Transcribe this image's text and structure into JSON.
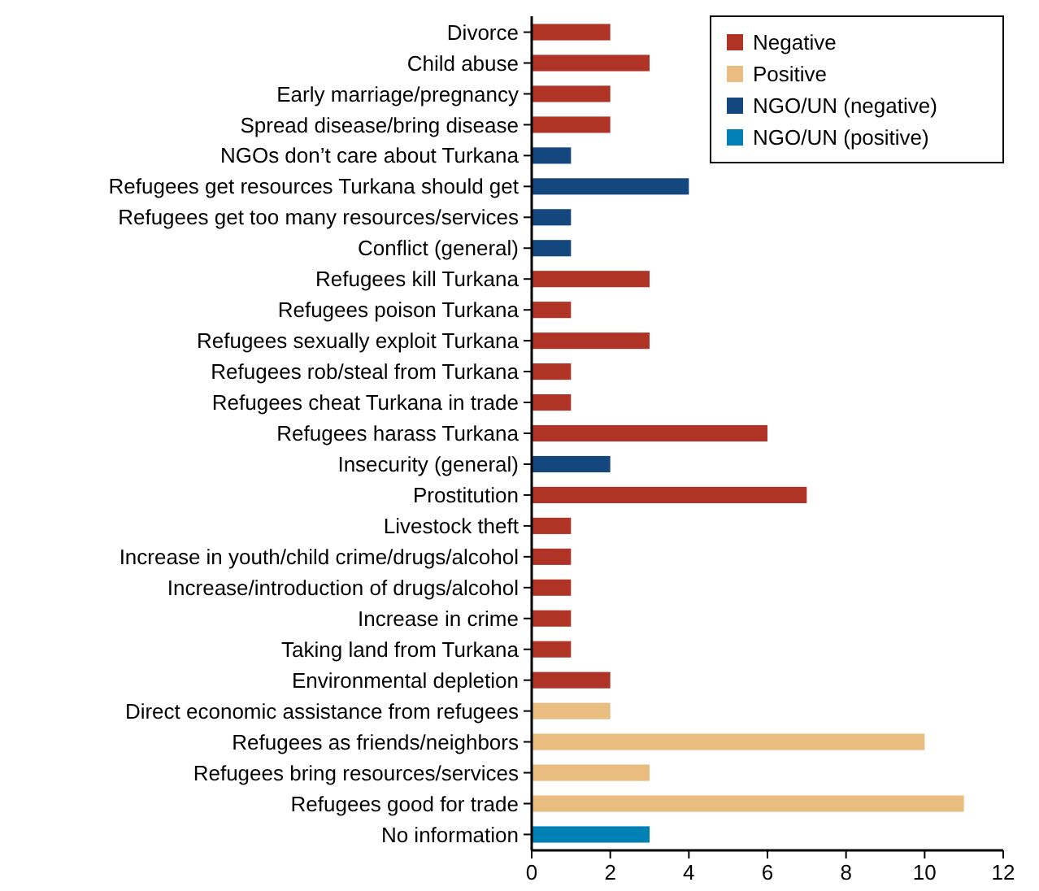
{
  "chart_data": {
    "type": "bar",
    "orientation": "horizontal",
    "categories": [
      "Divorce",
      "Child abuse",
      "Early marriage/pregnancy",
      "Spread disease/bring disease",
      "NGOs don’t care about Turkana",
      "Refugees get resources Turkana should get",
      "Refugees get too many resources/services",
      "Conflict (general)",
      "Refugees kill Turkana",
      "Refugees poison Turkana",
      "Refugees sexually exploit Turkana",
      "Refugees rob/steal from Turkana",
      "Refugees cheat Turkana in trade",
      "Refugees harass Turkana",
      "Insecurity (general)",
      "Prostitution",
      "Livestock theft",
      "Increase in youth/child crime/drugs/alcohol",
      "Increase/introduction of drugs/alcohol",
      "Increase in crime",
      "Taking land from Turkana",
      "Environmental depletion",
      "Direct economic assistance from refugees",
      "Refugees as friends/neighbors",
      "Refugees bring resources/services",
      "Refugees good for trade",
      "No information"
    ],
    "series": [
      {
        "name": "Negative",
        "color": "#b03426",
        "values": [
          2,
          3,
          2,
          2,
          null,
          null,
          null,
          null,
          3,
          1,
          3,
          1,
          1,
          6,
          null,
          7,
          1,
          1,
          1,
          1,
          1,
          2,
          null,
          null,
          null,
          null,
          null
        ]
      },
      {
        "name": "Positive",
        "color": "#e9bc80",
        "values": [
          null,
          null,
          null,
          null,
          null,
          null,
          null,
          null,
          null,
          null,
          null,
          null,
          null,
          null,
          null,
          null,
          null,
          null,
          null,
          null,
          null,
          null,
          2,
          10,
          3,
          11,
          null
        ]
      },
      {
        "name": "NGO/UN (negative)",
        "color": "#14477e",
        "values": [
          null,
          null,
          null,
          null,
          1,
          4,
          1,
          1,
          null,
          null,
          null,
          null,
          null,
          null,
          2,
          null,
          null,
          null,
          null,
          null,
          null,
          null,
          null,
          null,
          null,
          null,
          null
        ]
      },
      {
        "name": "NGO/UN (positive)",
        "color": "#0080b4",
        "values": [
          null,
          null,
          null,
          null,
          null,
          null,
          null,
          null,
          null,
          null,
          null,
          null,
          null,
          null,
          null,
          null,
          null,
          null,
          null,
          null,
          null,
          null,
          null,
          null,
          null,
          null,
          3
        ]
      }
    ],
    "xlim": [
      0,
      12
    ],
    "xticks": [
      0,
      2,
      4,
      6,
      8,
      10,
      12
    ],
    "legend": "top right",
    "grid": false
  }
}
